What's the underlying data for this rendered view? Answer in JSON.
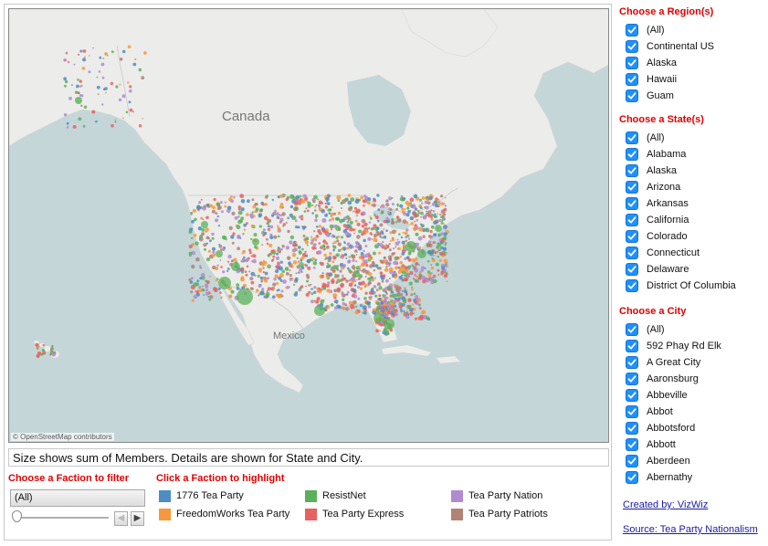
{
  "map": {
    "labels": {
      "canada": "Canada",
      "mexico": "Mexico"
    },
    "attribution": "© OpenStreetMap contributors",
    "colors": {
      "water": "#c4d6d8",
      "land": "#ececea",
      "border": "#c9c9c9"
    }
  },
  "caption": "Size shows sum of Members.  Details are shown for State and City.",
  "faction_filter": {
    "title": "Choose a Faction to filter",
    "selected": "(All)"
  },
  "faction_highlight": {
    "title": "Click a Faction to highlight",
    "items": [
      {
        "label": "1776 Tea Party",
        "color": "#4e8cc4"
      },
      {
        "label": "ResistNet",
        "color": "#5ab15a"
      },
      {
        "label": "Tea Party Nation",
        "color": "#b08bd2"
      },
      {
        "label": "FreedomWorks Tea Party",
        "color": "#f6993c"
      },
      {
        "label": "Tea Party Express",
        "color": "#e86060"
      },
      {
        "label": "Tea Party Patriots",
        "color": "#b08374"
      }
    ]
  },
  "region_filter": {
    "title": "Choose a Region(s)",
    "items": [
      "(All)",
      "Continental US",
      "Alaska",
      "Hawaii",
      "Guam"
    ]
  },
  "state_filter": {
    "title": "Choose a State(s)",
    "items": [
      "(All)",
      "Alabama",
      "Alaska",
      "Arizona",
      "Arkansas",
      "California",
      "Colorado",
      "Connecticut",
      "Delaware",
      "District Of Columbia"
    ]
  },
  "city_filter": {
    "title": "Choose a City",
    "items": [
      "(All)",
      "592 Phay Rd Elk",
      "A Great City",
      "Aaronsburg",
      "Abbeville",
      "Abbot",
      "Abbotsford",
      "Abbott",
      "Aberdeen",
      "Abernathy"
    ]
  },
  "links": {
    "created_by": "Created by: VizWiz",
    "source": "Source: Tea Party Nationalism"
  }
}
